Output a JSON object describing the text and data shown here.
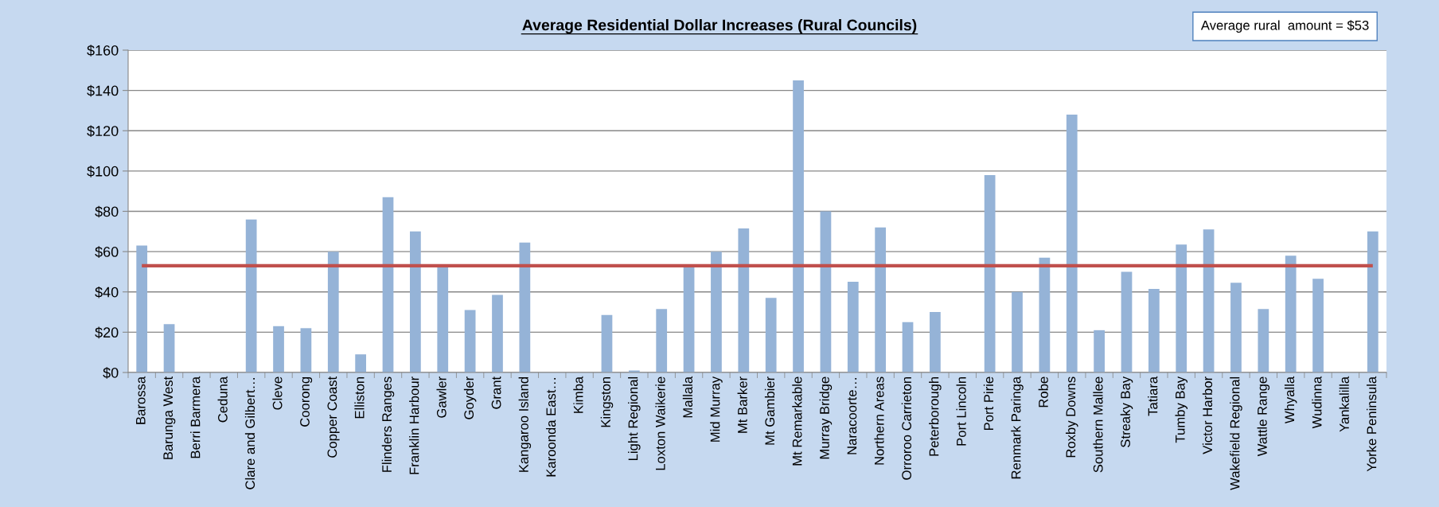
{
  "chart_data": {
    "type": "bar",
    "title": "Average Residential Dollar Increases (Rural Councils)",
    "categories": [
      "Barossa",
      "Barunga West",
      "Berri Barmera",
      "Ceduna",
      "Clare and Gilbert…",
      "Cleve",
      "Coorong",
      "Copper Coast",
      "Elliston",
      "Flinders Ranges",
      "Franklin Harbour",
      "Gawler",
      "Goyder",
      "Grant",
      "Kangaroo Island",
      "Karoonda East…",
      "Kimba",
      "Kingston",
      "Light Regional",
      "Loxton Waikerie",
      "Mallala",
      "Mid Murray",
      "Mt Barker",
      "Mt Gambier",
      "Mt Remarkable",
      "Murray Bridge",
      "Naracoorte…",
      "Northern Areas",
      "Orroroo Carrieton",
      "Peterborough",
      "Port Lincoln",
      "Port Pirie",
      "Renmark Paringa",
      "Robe",
      "Roxby Downs",
      "Southern Mallee",
      "Streaky Bay",
      "Tatiara",
      "Tumby Bay",
      "Victor Harbor",
      "Wakefield Regional",
      "Wattle Range",
      "Whyalla",
      "Wudinna",
      "Yankalilla",
      "Yorke Peninsula"
    ],
    "values": [
      63,
      24,
      0,
      0,
      76,
      23,
      22,
      60,
      9,
      87,
      70,
      53,
      31,
      38.5,
      64.5,
      0,
      0,
      28.5,
      1,
      31.5,
      53,
      60,
      71.5,
      37,
      145,
      80,
      45,
      72,
      25,
      30,
      0,
      98,
      40,
      57,
      128,
      21,
      50,
      41.5,
      63.5,
      71,
      44.5,
      31.5,
      58,
      46.5,
      0,
      70
    ],
    "color": "#95b3d7",
    "ylim": [
      0,
      160
    ],
    "yticks": [
      {
        "value": 0,
        "label": "$0"
      },
      {
        "value": 20,
        "label": "$20"
      },
      {
        "value": 40,
        "label": "$40"
      },
      {
        "value": 60,
        "label": "$60"
      },
      {
        "value": 80,
        "label": "$80"
      },
      {
        "value": 100,
        "label": "$100"
      },
      {
        "value": 120,
        "label": "$120"
      },
      {
        "value": 140,
        "label": "$140"
      },
      {
        "value": 160,
        "label": "$160"
      }
    ],
    "grid": "y",
    "annotations": [
      "Average rural  amount = $53"
    ],
    "ref_lines": [
      {
        "axis": "y",
        "value": 53,
        "color": "#c0504d"
      }
    ]
  }
}
